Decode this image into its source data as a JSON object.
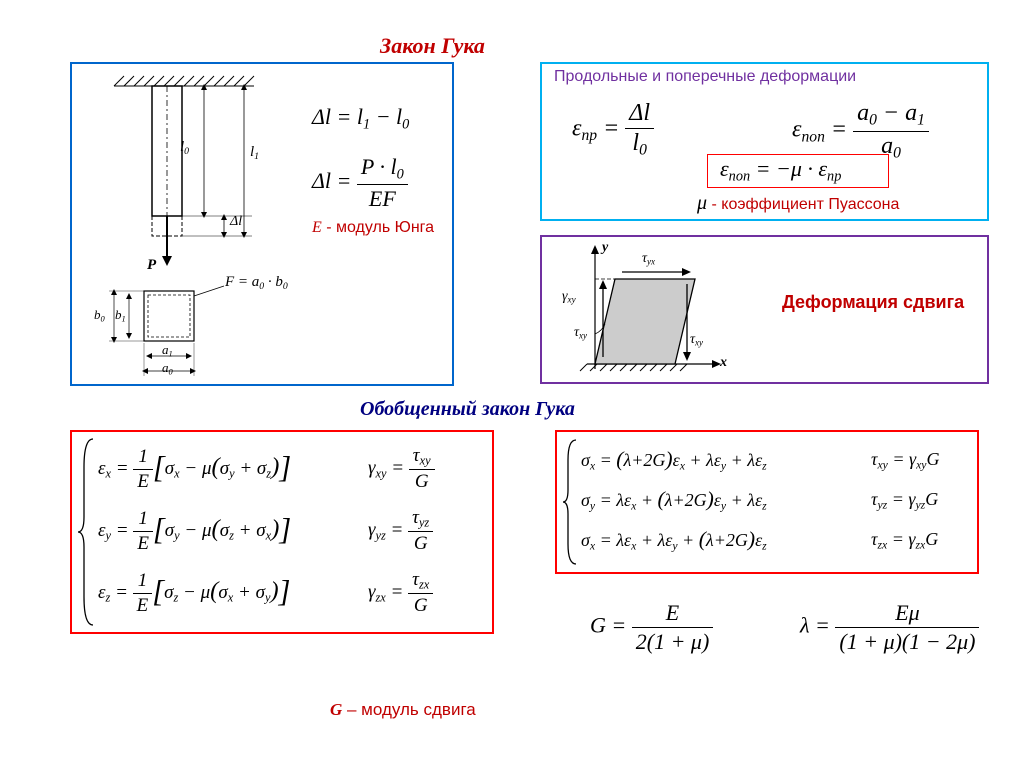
{
  "titles": {
    "main": "Закон Гука",
    "generalized": "Обобщенный закон Гука"
  },
  "blue_box": {
    "formula1": "Δl = l₁ − l₀",
    "formula2_lhs": "Δl =",
    "formula2_num": "P · l₀",
    "formula2_den": "EF",
    "young_label_var": "E",
    "young_label_text": " - модуль Юнга",
    "diagram": {
      "l0": "l₀",
      "l1": "l₁",
      "P": "P",
      "dl": "Δl",
      "b0": "b₀",
      "b1": "b₁",
      "a0": "a₀",
      "a1": "a₁",
      "F_eq": "F = a₀ · b₀"
    }
  },
  "cyan_box": {
    "header": "Продольные и поперечные деформации",
    "eps_pr_lhs": "ε",
    "eps_pr_sub": "np",
    "eps_pr_num": "Δl",
    "eps_pr_den": "l₀",
    "eps_pop_lhs": "ε",
    "eps_pop_sub": "non",
    "eps_pop_num": "a₀ − a₁",
    "eps_pop_den": "a₀",
    "relation": "ε_non = −μ · ε_np",
    "mu": "μ",
    "poisson_text": " - коэффициент  Пуассона"
  },
  "purple_box": {
    "shear_title": "Деформация сдвига",
    "gamma_xy": "γₓᵧ",
    "tau_yx": "τᵧₓ",
    "tau_xy": "τₓᵧ",
    "y": "y",
    "x": "x"
  },
  "generalized": {
    "strain_rows": [
      {
        "lhs_sub": "x",
        "a": "x",
        "b": "y",
        "c": "z",
        "g_sub": "xy",
        "t_sub": "xy"
      },
      {
        "lhs_sub": "y",
        "a": "y",
        "b": "z",
        "c": "x",
        "g_sub": "yz",
        "t_sub": "yz"
      },
      {
        "lhs_sub": "z",
        "a": "z",
        "b": "x",
        "c": "y",
        "g_sub": "zx",
        "t_sub": "zx"
      }
    ],
    "stress_rows": [
      {
        "s": "x",
        "a": "x",
        "b": "y",
        "c": "z",
        "t": "xy",
        "g": "xy"
      },
      {
        "s": "y",
        "a": "x",
        "b": "y",
        "c": "z",
        "t": "yz",
        "g": "yz",
        "mid": "y"
      },
      {
        "s": "x",
        "a": "x",
        "b": "y",
        "c": "z",
        "t": "zx",
        "g": "zx",
        "mid": "z"
      }
    ],
    "G_num": "E",
    "G_den": "2(1 + μ)",
    "lambda_num": "Eμ",
    "lambda_den": "(1 + μ)(1 − 2μ)"
  },
  "footer": {
    "G_var": "G",
    "G_text": " – модуль сдвига"
  },
  "colors": {
    "red": "#c00000",
    "blue_border": "#0066cc",
    "cyan_border": "#00b0f0",
    "purple_border": "#7030a0",
    "red_border": "#ff0000",
    "navy": "#000080"
  }
}
